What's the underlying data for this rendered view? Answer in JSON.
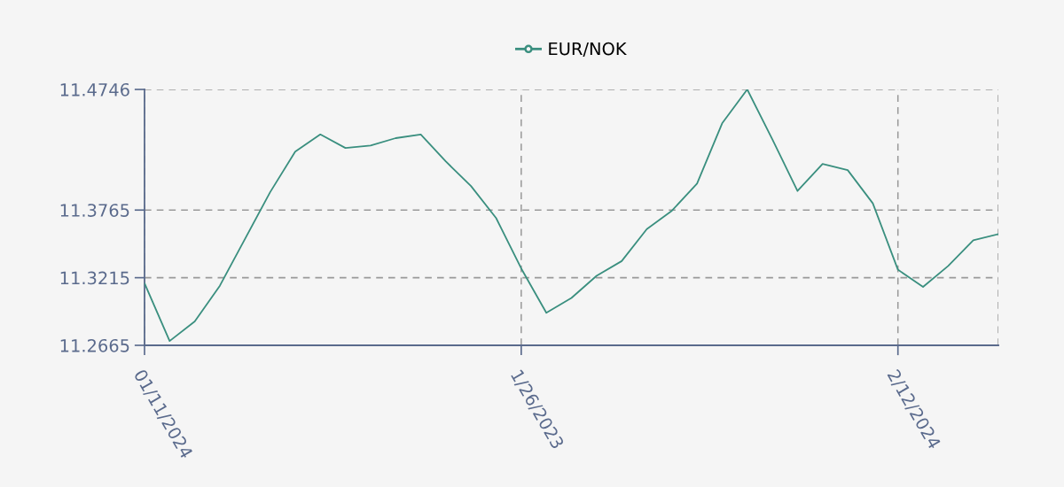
{
  "chart_data": {
    "type": "line",
    "categories": [
      "01/11/2024",
      null,
      null,
      null,
      null,
      null,
      null,
      null,
      null,
      null,
      null,
      null,
      null,
      null,
      null,
      "1/26/2023",
      null,
      null,
      null,
      null,
      null,
      null,
      null,
      null,
      null,
      null,
      null,
      null,
      null,
      null,
      "2/12/2024",
      null,
      null,
      null,
      null
    ],
    "series": [
      {
        "name": "EUR/NOK",
        "color": "#3a8f7f",
        "values": [
          11.317,
          11.27,
          11.286,
          11.315,
          11.353,
          11.391,
          11.424,
          11.438,
          11.427,
          11.429,
          11.435,
          11.438,
          11.416,
          11.396,
          11.37,
          11.329,
          11.293,
          11.305,
          11.323,
          11.335,
          11.361,
          11.376,
          11.398,
          11.447,
          11.4746,
          11.434,
          11.392,
          11.414,
          11.409,
          11.382,
          11.328,
          11.314,
          11.331,
          11.352,
          11.357
        ]
      }
    ],
    "ylim": [
      11.2665,
      11.4746
    ],
    "yticks": [
      11.2665,
      11.3215,
      11.3765,
      11.4746
    ],
    "grid": true,
    "legend": "top"
  }
}
